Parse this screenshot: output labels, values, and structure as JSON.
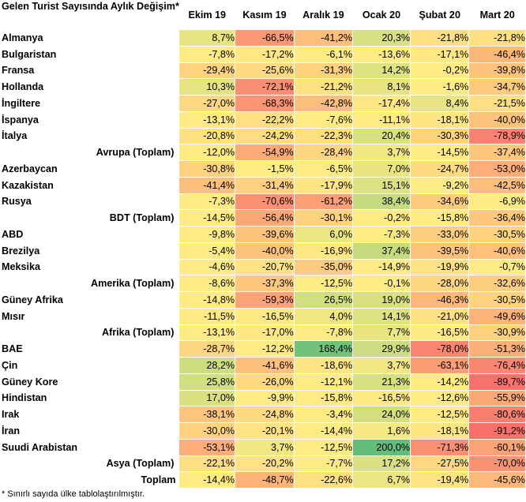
{
  "header": {
    "corner": "Gelen Turist Sayısında Aylık Değişim*",
    "months": [
      "Ekim 19",
      "Kasım 19",
      "Aralık 19",
      "Ocak 20",
      "Şubat 20",
      "Mart 20"
    ]
  },
  "rows": [
    {
      "name": "Almanya",
      "kind": "country",
      "values": [
        "8,7%",
        "-66,5%",
        "-41,2%",
        "20,3%",
        "-21,8%",
        "-21,8%"
      ]
    },
    {
      "name": "Bulgaristan",
      "kind": "country",
      "values": [
        "-7,8%",
        "-17,2%",
        "-6,1%",
        "-13,6%",
        "-17,1%",
        "-46,4%"
      ]
    },
    {
      "name": "Fransa",
      "kind": "country",
      "values": [
        "-29,4%",
        "-25,6%",
        "-31,3%",
        "14,2%",
        "-0,2%",
        "-39,8%"
      ]
    },
    {
      "name": "Hollanda",
      "kind": "country",
      "values": [
        "10,3%",
        "-72,1%",
        "-21,2%",
        "8,1%",
        "-1,6%",
        "-34,7%"
      ]
    },
    {
      "name": "İngiltere",
      "kind": "country",
      "values": [
        "-27,0%",
        "-68,3%",
        "-42,8%",
        "-17,4%",
        "8,4%",
        "-21,5%"
      ]
    },
    {
      "name": "İspanya",
      "kind": "country",
      "values": [
        "-13,1%",
        "-22,2%",
        "-7,6%",
        "-11,1%",
        "-18,1%",
        "-40,0%"
      ]
    },
    {
      "name": "İtalya",
      "kind": "country",
      "values": [
        "-20,8%",
        "-24,2%",
        "-22,3%",
        "20,4%",
        "-30,3%",
        "-78,9%"
      ]
    },
    {
      "name": "Avrupa (Toplam)",
      "kind": "subtotal",
      "values": [
        "-12,0%",
        "-54,9%",
        "-28,4%",
        "3,7%",
        "-14,5%",
        "-37,4%"
      ]
    },
    {
      "name": "Azerbaycan",
      "kind": "country",
      "values": [
        "-30,8%",
        "-1,5%",
        "-6,5%",
        "7,0%",
        "-24,7%",
        "-53,0%"
      ]
    },
    {
      "name": "Kazakistan",
      "kind": "country",
      "values": [
        "-41,4%",
        "-31,4%",
        "-17,9%",
        "15,1%",
        "-9,2%",
        "-42,5%"
      ]
    },
    {
      "name": "Rusya",
      "kind": "country",
      "values": [
        "-7,3%",
        "-70,6%",
        "-61,2%",
        "38,4%",
        "-34,6%",
        "-6,9%"
      ]
    },
    {
      "name": "BDT (Toplam)",
      "kind": "subtotal",
      "values": [
        "-14,5%",
        "-56,4%",
        "-30,1%",
        "-0,2%",
        "-15,8%",
        "-36,4%"
      ]
    },
    {
      "name": "ABD",
      "kind": "country",
      "values": [
        "-9,8%",
        "-39,6%",
        "6,0%",
        "-7,3%",
        "-33,0%",
        "-30,5%"
      ]
    },
    {
      "name": "Brezilya",
      "kind": "country",
      "values": [
        "-5,4%",
        "-40,0%",
        "-16,9%",
        "37,4%",
        "-39,5%",
        "-40,6%"
      ]
    },
    {
      "name": "Meksika",
      "kind": "country",
      "values": [
        "-4,6%",
        "-20,7%",
        "-35,0%",
        "-14,9%",
        "-19,9%",
        "-0,7%"
      ]
    },
    {
      "name": "Amerika (Toplam)",
      "kind": "subtotal",
      "values": [
        "-8,6%",
        "-37,3%",
        "-12,5%",
        "-0,1%",
        "-28,0%",
        "-32,6%"
      ]
    },
    {
      "name": "Güney Afrika",
      "kind": "country",
      "values": [
        "-14,8%",
        "-59,3%",
        "26,5%",
        "19,0%",
        "-46,3%",
        "-30,5%"
      ]
    },
    {
      "name": "Mısır",
      "kind": "country",
      "values": [
        "-11,5%",
        "-16,5%",
        "4,0%",
        "14,1%",
        "-21,0%",
        "-49,6%"
      ]
    },
    {
      "name": "Afrika (Toplam)",
      "kind": "subtotal",
      "values": [
        "-13,1%",
        "-17,0%",
        "-7,8%",
        "7,7%",
        "-16,5%",
        "-30,9%"
      ]
    },
    {
      "name": "BAE",
      "kind": "country",
      "values": [
        "-28,7%",
        "-12,2%",
        "168,4%",
        "29,9%",
        "-78,0%",
        "-51,3%"
      ]
    },
    {
      "name": "Çin",
      "kind": "country",
      "values": [
        "28,2%",
        "-41,6%",
        "-18,6%",
        "3,7%",
        "-63,1%",
        "-76,4%"
      ]
    },
    {
      "name": "Güney Kore",
      "kind": "country",
      "values": [
        "25,8%",
        "-26,0%",
        "-12,1%",
        "21,3%",
        "-14,2%",
        "-89,7%"
      ]
    },
    {
      "name": "Hindistan",
      "kind": "country",
      "values": [
        "17,0%",
        "-9,9%",
        "-15,8%",
        "-16,5%",
        "-12,6%",
        "-55,9%"
      ]
    },
    {
      "name": "Irak",
      "kind": "country",
      "values": [
        "-38,1%",
        "-24,8%",
        "-3,4%",
        "24,0%",
        "-12,5%",
        "-80,6%"
      ]
    },
    {
      "name": "İran",
      "kind": "country",
      "values": [
        "-30,0%",
        "-20,1%",
        "-14,4%",
        "1,6%",
        "-18,1%",
        "-91,2%"
      ]
    },
    {
      "name": "Suudi Arabistan",
      "kind": "country",
      "values": [
        "-53,1%",
        "3,7%",
        "-12,5%",
        "200,0%",
        "-71,3%",
        "-60,1%"
      ]
    },
    {
      "name": "Asya (Toplam)",
      "kind": "subtotal",
      "values": [
        "-22,1%",
        "-20,2%",
        "-7,7%",
        "17,2%",
        "-27,5%",
        "-70,0%"
      ]
    },
    {
      "name": "Toplam",
      "kind": "total",
      "values": [
        "-14,4%",
        "-48,7%",
        "-22,6%",
        "6,7%",
        "-19,4%",
        "-45,6%"
      ]
    }
  ],
  "footnote": "* Sınırlı sayıda ülke tablolaştırılmıştır.",
  "colors": {
    "low": "#f8696b",
    "mid": "#ffeb84",
    "high": "#63be7b"
  }
}
